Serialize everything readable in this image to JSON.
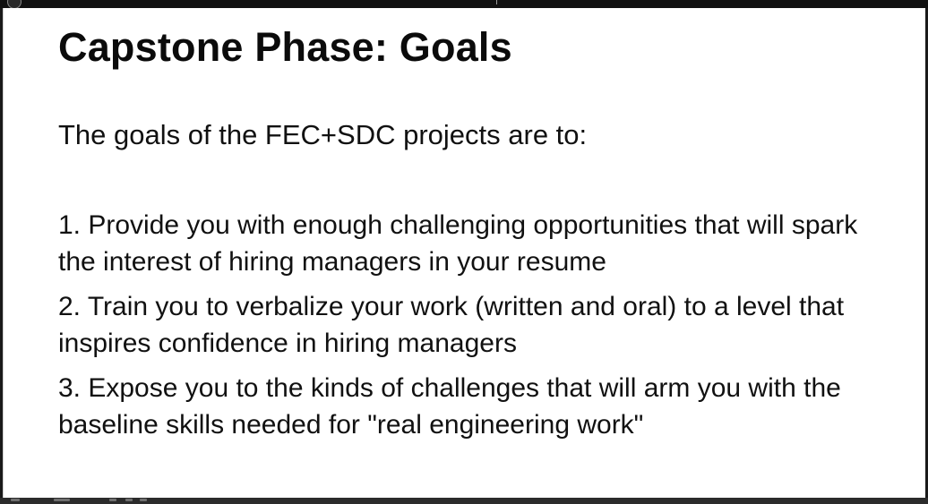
{
  "slide": {
    "title": "Capstone Phase: Goals",
    "intro": "The goals of the FEC+SDC projects are to:",
    "goals": [
      "1. Provide you with enough challenging opportunities that will spark the interest of hiring managers in your resume",
      "2. Train you to verbalize your work (written and oral) to a level that inspires confidence in hiring managers",
      "3. Expose you to the kinds of challenges that will arm you with the baseline skills needed for \"real engineering work\""
    ]
  },
  "icons": {
    "top_left": "app-icon",
    "bottom_controls": [
      "play-icon",
      "volume-icon",
      "settings-icon"
    ]
  },
  "colors": {
    "slide_background": "#ffffff",
    "text": "#111111",
    "chrome": "#111111"
  }
}
